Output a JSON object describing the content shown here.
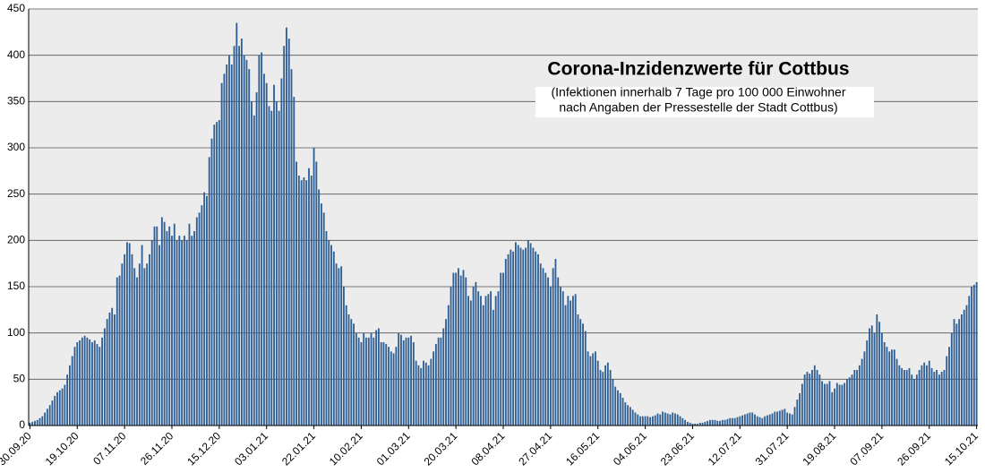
{
  "chart_data": {
    "type": "bar",
    "title": "Corona-Inzidenzwerte für Cottbus",
    "subtitle": [
      "(Infektionen innerhalb 7 Tage pro 100 000 Einwohner",
      "nach Angaben der Pressestelle der Stadt Cottbus)"
    ],
    "categories": [
      "30.09.20",
      null,
      null,
      null,
      null,
      null,
      null,
      null,
      null,
      null,
      null,
      null,
      null,
      null,
      null,
      null,
      null,
      null,
      null,
      "19.10.20",
      null,
      null,
      null,
      null,
      null,
      null,
      null,
      null,
      null,
      null,
      null,
      null,
      null,
      null,
      null,
      null,
      null,
      null,
      "07.11.20",
      null,
      null,
      null,
      null,
      null,
      null,
      null,
      null,
      null,
      null,
      null,
      null,
      null,
      null,
      null,
      null,
      null,
      null,
      "26.11.20",
      null,
      null,
      null,
      null,
      null,
      null,
      null,
      null,
      null,
      null,
      null,
      null,
      null,
      null,
      null,
      null,
      null,
      null,
      "15.12.20",
      null,
      null,
      null,
      null,
      null,
      null,
      null,
      null,
      null,
      null,
      null,
      null,
      null,
      null,
      null,
      null,
      null,
      null,
      "03.01.21",
      null,
      null,
      null,
      null,
      null,
      null,
      null,
      null,
      null,
      null,
      null,
      null,
      null,
      null,
      null,
      null,
      null,
      null,
      "22.01.21",
      null,
      null,
      null,
      null,
      null,
      null,
      null,
      null,
      null,
      null,
      null,
      null,
      null,
      null,
      null,
      null,
      null,
      null,
      "10.02.21",
      null,
      null,
      null,
      null,
      null,
      null,
      null,
      null,
      null,
      null,
      null,
      null,
      null,
      null,
      null,
      null,
      null,
      null,
      "01.03.21",
      null,
      null,
      null,
      null,
      null,
      null,
      null,
      null,
      null,
      null,
      null,
      null,
      null,
      null,
      null,
      null,
      null,
      null,
      "20.03.21",
      null,
      null,
      null,
      null,
      null,
      null,
      null,
      null,
      null,
      null,
      null,
      null,
      null,
      null,
      null,
      null,
      null,
      null,
      "08.04.21",
      null,
      null,
      null,
      null,
      null,
      null,
      null,
      null,
      null,
      null,
      null,
      null,
      null,
      null,
      null,
      null,
      null,
      null,
      "27.04.21",
      null,
      null,
      null,
      null,
      null,
      null,
      null,
      null,
      null,
      null,
      null,
      null,
      null,
      null,
      null,
      null,
      null,
      null,
      "16.05.21",
      null,
      null,
      null,
      null,
      null,
      null,
      null,
      null,
      null,
      null,
      null,
      null,
      null,
      null,
      null,
      null,
      null,
      null,
      "04.06.21",
      null,
      null,
      null,
      null,
      null,
      null,
      null,
      null,
      null,
      null,
      null,
      null,
      null,
      null,
      null,
      null,
      null,
      null,
      "23.06.21",
      null,
      null,
      null,
      null,
      null,
      null,
      null,
      null,
      null,
      null,
      null,
      null,
      null,
      null,
      null,
      null,
      null,
      null,
      "12.07.21",
      null,
      null,
      null,
      null,
      null,
      null,
      null,
      null,
      null,
      null,
      null,
      null,
      null,
      null,
      null,
      null,
      null,
      null,
      "31.07.21",
      null,
      null,
      null,
      null,
      null,
      null,
      null,
      null,
      null,
      null,
      null,
      null,
      null,
      null,
      null,
      null,
      null,
      null,
      "19.08.21",
      null,
      null,
      null,
      null,
      null,
      null,
      null,
      null,
      null,
      null,
      null,
      null,
      null,
      null,
      null,
      null,
      null,
      null,
      "07.09.21",
      null,
      null,
      null,
      null,
      null,
      null,
      null,
      null,
      null,
      null,
      null,
      null,
      null,
      null,
      null,
      null,
      null,
      null,
      "26.09.21",
      null,
      null,
      null,
      null,
      null,
      null,
      null,
      null,
      null,
      null,
      null,
      null,
      null,
      null,
      null,
      null,
      null,
      null,
      "15.10.21"
    ],
    "values": [
      3,
      4,
      5,
      6,
      8,
      10,
      14,
      18,
      22,
      27,
      32,
      36,
      38,
      40,
      44,
      55,
      65,
      75,
      85,
      90,
      92,
      95,
      97,
      95,
      93,
      90,
      92,
      88,
      85,
      95,
      105,
      115,
      122,
      127,
      120,
      160,
      162,
      175,
      185,
      198,
      197,
      185,
      170,
      160,
      175,
      195,
      170,
      175,
      185,
      200,
      215,
      215,
      195,
      225,
      220,
      210,
      215,
      205,
      218,
      200,
      205,
      200,
      205,
      200,
      218,
      205,
      210,
      225,
      230,
      238,
      252,
      248,
      290,
      310,
      325,
      328,
      330,
      370,
      380,
      390,
      400,
      390,
      410,
      435,
      410,
      418,
      400,
      395,
      385,
      350,
      335,
      360,
      400,
      403,
      380,
      370,
      345,
      340,
      368,
      350,
      340,
      375,
      410,
      430,
      418,
      385,
      355,
      285,
      270,
      265,
      268,
      265,
      278,
      270,
      300,
      285,
      255,
      240,
      230,
      210,
      200,
      195,
      188,
      175,
      170,
      172,
      150,
      130,
      120,
      115,
      110,
      100,
      95,
      90,
      100,
      95,
      95,
      100,
      95,
      103,
      105,
      90,
      90,
      88,
      85,
      80,
      78,
      85,
      100,
      98,
      92,
      95,
      95,
      97,
      90,
      70,
      65,
      62,
      70,
      68,
      65,
      72,
      80,
      88,
      95,
      95,
      105,
      115,
      130,
      150,
      165,
      165,
      170,
      162,
      168,
      160,
      140,
      135,
      150,
      155,
      145,
      140,
      130,
      140,
      142,
      145,
      125,
      140,
      145,
      165,
      165,
      180,
      185,
      190,
      188,
      198,
      195,
      192,
      190,
      192,
      200,
      197,
      192,
      188,
      185,
      175,
      170,
      165,
      160,
      150,
      170,
      180,
      160,
      150,
      145,
      130,
      140,
      135,
      140,
      142,
      120,
      115,
      110,
      102,
      80,
      75,
      78,
      80,
      70,
      60,
      58,
      65,
      68,
      60,
      50,
      42,
      38,
      35,
      30,
      25,
      22,
      20,
      17,
      14,
      12,
      10,
      10,
      10,
      10,
      9,
      10,
      11,
      13,
      12,
      15,
      14,
      13,
      12,
      14,
      13,
      12,
      10,
      8,
      6,
      4,
      3,
      2,
      2,
      2,
      3,
      3,
      4,
      5,
      6,
      6,
      6,
      5,
      5,
      6,
      6,
      7,
      8,
      8,
      8,
      9,
      10,
      11,
      12,
      13,
      14,
      14,
      12,
      10,
      9,
      8,
      10,
      11,
      12,
      13,
      15,
      15,
      16,
      17,
      18,
      14,
      13,
      12,
      20,
      28,
      35,
      45,
      55,
      58,
      56,
      60,
      65,
      60,
      55,
      48,
      45,
      45,
      48,
      36,
      40,
      46,
      44,
      44,
      46,
      50,
      52,
      55,
      60,
      60,
      65,
      72,
      80,
      92,
      105,
      108,
      100,
      120,
      112,
      100,
      90,
      85,
      80,
      82,
      82,
      72,
      65,
      62,
      60,
      60,
      62,
      55,
      50,
      55,
      60,
      65,
      68,
      65,
      70,
      62,
      58,
      60,
      55,
      58,
      60,
      75,
      85,
      100,
      115,
      110,
      115,
      120,
      125,
      130,
      140,
      150,
      152,
      155
    ],
    "color": "#2f5f94",
    "ylim": [
      0,
      450
    ],
    "yticks": [
      0,
      50,
      100,
      150,
      200,
      250,
      300,
      350,
      400,
      450
    ],
    "grid": true
  }
}
